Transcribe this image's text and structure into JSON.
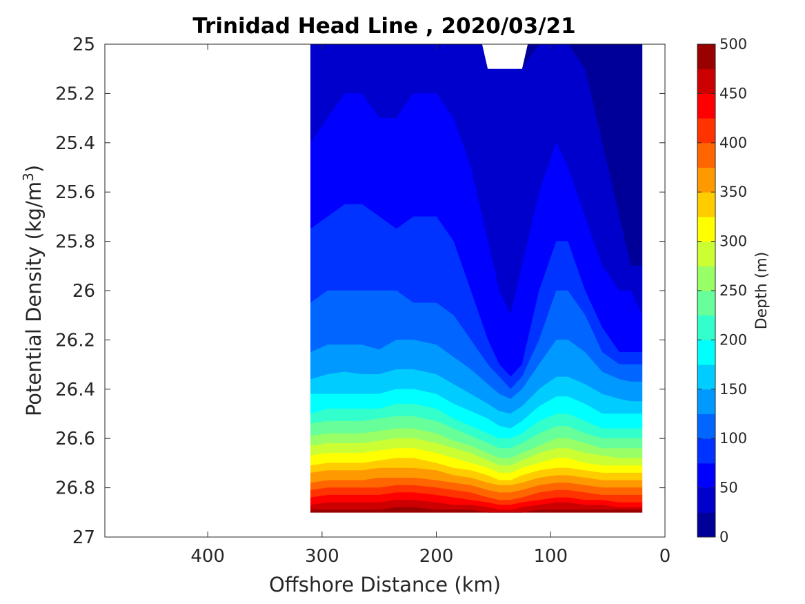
{
  "chart_data": {
    "type": "filled-contour",
    "title": "Trinidad Head Line , 2020/03/21",
    "xlabel": "Offshore Distance (km)",
    "ylabel_main": "Potential Density (kg/m",
    "ylabel_sup": "3",
    "ylabel_tail": ")",
    "xlim": [
      490,
      0
    ],
    "x_reversed": true,
    "xticks": [
      400,
      300,
      200,
      100,
      0
    ],
    "xtick_labels": [
      "400",
      "300",
      "200",
      "100",
      "0"
    ],
    "ylim": [
      25,
      27
    ],
    "y_reversed": true,
    "yticks": [
      25,
      25.2,
      25.4,
      25.6,
      25.8,
      26,
      26.2,
      26.4,
      26.6,
      26.8,
      27
    ],
    "ytick_labels": [
      "25",
      "25.2",
      "25.4",
      "25.6",
      "25.8",
      "26",
      "26.2",
      "26.4",
      "26.6",
      "26.8",
      "27"
    ],
    "colorbar": {
      "label": "Depth (m)",
      "range": [
        0,
        500
      ],
      "level_step": 25,
      "ticks": [
        0,
        50,
        100,
        150,
        200,
        250,
        300,
        350,
        400,
        450,
        500
      ],
      "tick_labels": [
        "0",
        "50",
        "100",
        "150",
        "200",
        "250",
        "300",
        "350",
        "400",
        "450",
        "500"
      ],
      "colormap": "jet"
    },
    "stations_x": [
      310,
      295,
      280,
      265,
      250,
      235,
      220,
      200,
      185,
      170,
      155,
      145,
      135,
      125,
      110,
      95,
      85,
      70,
      55,
      40,
      30,
      20
    ],
    "depth_contours": [
      {
        "level": 25,
        "sigma": [
          25.0,
          25.0,
          25.0,
          25.0,
          25.0,
          25.0,
          25.0,
          25.0,
          25.0,
          25.0,
          25.0,
          25.1,
          25.1,
          25.1,
          25.0,
          25.0,
          25.0,
          25.1,
          25.4,
          25.7,
          25.9,
          25.9
        ]
      },
      {
        "level": 50,
        "sigma": [
          25.4,
          25.3,
          25.2,
          25.2,
          25.3,
          25.3,
          25.2,
          25.2,
          25.3,
          25.5,
          25.8,
          26.0,
          26.1,
          25.9,
          25.6,
          25.4,
          25.5,
          25.7,
          25.9,
          26.0,
          26.0,
          26.1
        ]
      },
      {
        "level": 75,
        "sigma": [
          25.75,
          25.7,
          25.65,
          25.65,
          25.7,
          25.75,
          25.7,
          25.7,
          25.8,
          26.0,
          26.2,
          26.3,
          26.35,
          26.3,
          26.0,
          25.8,
          25.8,
          26.0,
          26.15,
          26.25,
          26.25,
          26.25
        ]
      },
      {
        "level": 100,
        "sigma": [
          26.05,
          26.0,
          26.0,
          26.0,
          26.0,
          26.0,
          26.05,
          26.05,
          26.1,
          26.2,
          26.3,
          26.35,
          26.4,
          26.35,
          26.2,
          26.0,
          26.0,
          26.1,
          26.25,
          26.3,
          26.3,
          26.3
        ]
      },
      {
        "level": 125,
        "sigma": [
          26.25,
          26.22,
          26.22,
          26.22,
          26.24,
          26.2,
          26.2,
          26.22,
          26.27,
          26.32,
          26.38,
          26.42,
          26.44,
          26.4,
          26.3,
          26.2,
          26.2,
          26.25,
          26.33,
          26.36,
          26.37,
          26.37
        ]
      },
      {
        "level": 150,
        "sigma": [
          26.36,
          26.34,
          26.33,
          26.34,
          26.34,
          26.32,
          26.32,
          26.34,
          26.38,
          26.42,
          26.46,
          26.49,
          26.5,
          26.47,
          26.4,
          26.35,
          26.35,
          26.38,
          26.42,
          26.44,
          26.45,
          26.45
        ]
      },
      {
        "level": 175,
        "sigma": [
          26.42,
          26.42,
          26.42,
          26.42,
          26.42,
          26.4,
          26.4,
          26.42,
          26.46,
          26.49,
          26.52,
          26.55,
          26.56,
          26.53,
          26.47,
          26.43,
          26.43,
          26.46,
          26.5,
          26.5,
          26.5,
          26.5
        ]
      },
      {
        "level": 200,
        "sigma": [
          26.5,
          26.48,
          26.48,
          26.48,
          26.48,
          26.46,
          26.46,
          26.48,
          26.52,
          26.55,
          26.58,
          26.6,
          26.6,
          26.58,
          26.53,
          26.5,
          26.5,
          26.53,
          26.56,
          26.56,
          26.56,
          26.56
        ]
      },
      {
        "level": 225,
        "sigma": [
          26.54,
          26.53,
          26.53,
          26.53,
          26.52,
          26.51,
          26.51,
          26.53,
          26.56,
          26.59,
          26.62,
          26.64,
          26.64,
          26.62,
          26.58,
          26.55,
          26.55,
          26.58,
          26.6,
          26.6,
          26.6,
          26.6
        ]
      },
      {
        "level": 250,
        "sigma": [
          26.59,
          26.58,
          26.58,
          26.58,
          26.57,
          26.56,
          26.56,
          26.58,
          26.61,
          26.63,
          26.66,
          26.68,
          26.68,
          26.66,
          26.63,
          26.6,
          26.6,
          26.62,
          26.64,
          26.64,
          26.64,
          26.64
        ]
      },
      {
        "level": 275,
        "sigma": [
          26.63,
          26.62,
          26.62,
          26.62,
          26.61,
          26.6,
          26.6,
          26.62,
          26.64,
          26.66,
          26.69,
          26.71,
          26.71,
          26.69,
          26.66,
          26.64,
          26.64,
          26.66,
          26.67,
          26.68,
          26.68,
          26.68
        ]
      },
      {
        "level": 300,
        "sigma": [
          26.67,
          26.66,
          26.66,
          26.66,
          26.65,
          26.64,
          26.64,
          26.66,
          26.68,
          26.7,
          26.72,
          26.74,
          26.74,
          26.72,
          26.7,
          26.68,
          26.68,
          26.7,
          26.71,
          26.71,
          26.71,
          26.71
        ]
      },
      {
        "level": 325,
        "sigma": [
          26.71,
          26.7,
          26.7,
          26.7,
          26.69,
          26.68,
          26.68,
          26.7,
          26.72,
          26.73,
          26.75,
          26.77,
          26.77,
          26.75,
          26.73,
          26.72,
          26.72,
          26.73,
          26.74,
          26.74,
          26.74,
          26.74
        ]
      },
      {
        "level": 350,
        "sigma": [
          26.74,
          26.73,
          26.73,
          26.73,
          26.72,
          26.72,
          26.72,
          26.73,
          26.75,
          26.76,
          26.78,
          26.79,
          26.79,
          26.78,
          26.76,
          26.75,
          26.75,
          26.76,
          26.77,
          26.77,
          26.77,
          26.77
        ]
      },
      {
        "level": 375,
        "sigma": [
          26.78,
          26.77,
          26.77,
          26.77,
          26.76,
          26.76,
          26.76,
          26.77,
          26.78,
          26.79,
          26.81,
          26.82,
          26.82,
          26.81,
          26.79,
          26.78,
          26.78,
          26.79,
          26.8,
          26.8,
          26.8,
          26.8
        ]
      },
      {
        "level": 400,
        "sigma": [
          26.81,
          26.8,
          26.8,
          26.8,
          26.8,
          26.79,
          26.79,
          26.8,
          26.81,
          26.82,
          26.84,
          26.85,
          26.85,
          26.84,
          26.82,
          26.81,
          26.81,
          26.82,
          26.83,
          26.83,
          26.83,
          26.83
        ]
      },
      {
        "level": 425,
        "sigma": [
          26.84,
          26.83,
          26.83,
          26.83,
          26.83,
          26.82,
          26.82,
          26.83,
          26.84,
          26.85,
          26.86,
          26.87,
          26.87,
          26.86,
          26.85,
          26.84,
          26.84,
          26.85,
          26.85,
          26.86,
          26.86,
          26.86
        ]
      },
      {
        "level": 450,
        "sigma": [
          26.87,
          26.86,
          26.86,
          26.86,
          26.86,
          26.85,
          26.85,
          26.86,
          26.87,
          26.87,
          26.88,
          26.89,
          26.89,
          26.88,
          26.87,
          26.86,
          26.86,
          26.87,
          26.87,
          26.88,
          26.88,
          26.88
        ]
      },
      {
        "level": 475,
        "sigma": [
          26.89,
          26.89,
          26.89,
          26.89,
          26.89,
          26.88,
          26.88,
          26.89,
          26.89,
          26.89,
          26.9,
          26.9,
          26.9,
          26.9,
          26.89,
          26.89,
          26.89,
          26.89,
          26.89,
          26.89,
          26.89,
          26.89
        ]
      }
    ],
    "data_bottom_sigma": 26.9,
    "top_gap": {
      "x": [
        155,
        145,
        135,
        125
      ],
      "sigma_top": [
        25.1,
        25.1,
        25.1,
        25.1
      ]
    }
  }
}
